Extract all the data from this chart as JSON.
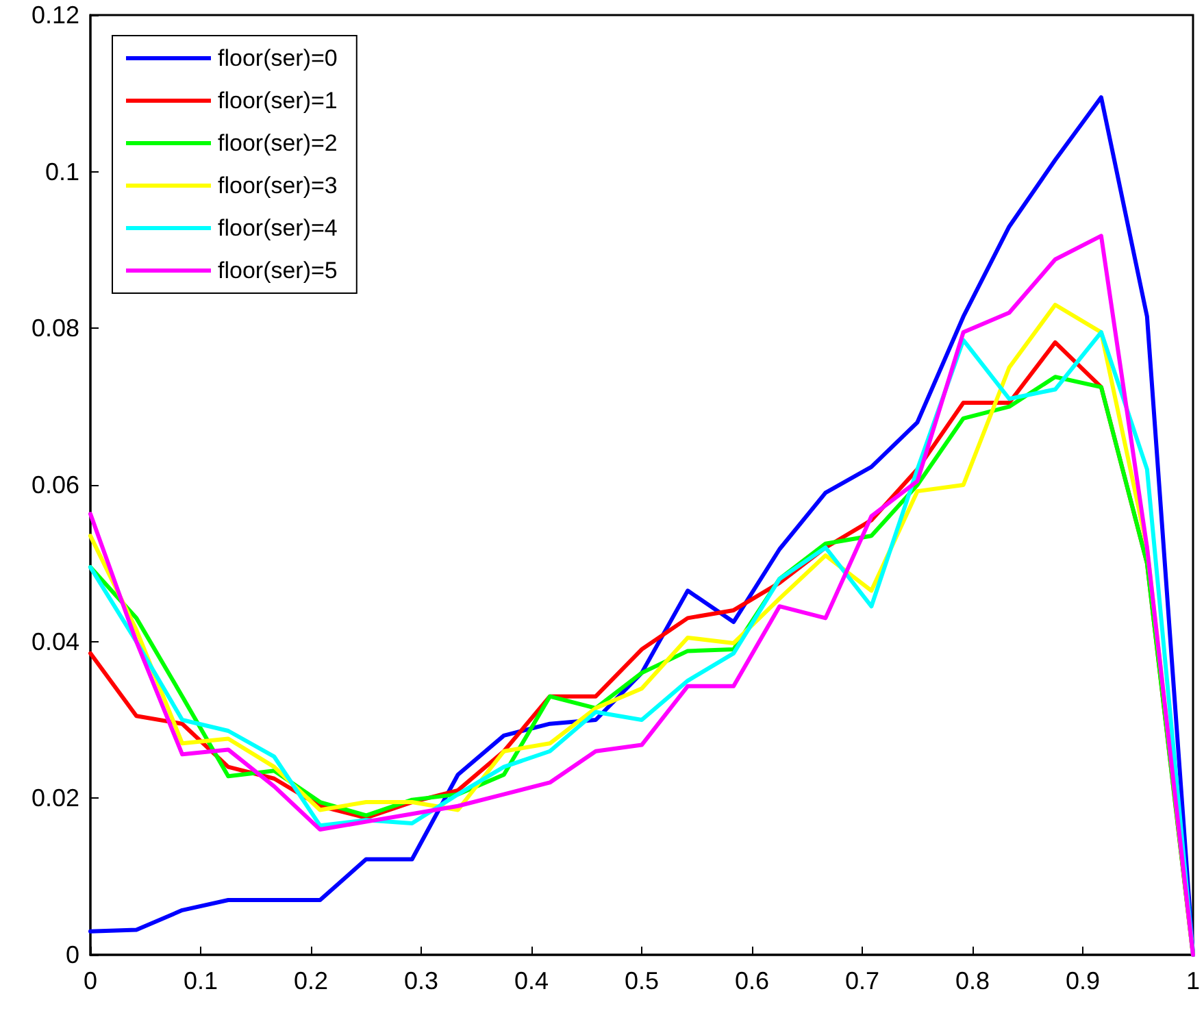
{
  "chart_data": {
    "type": "line",
    "x": [
      0,
      0.0417,
      0.0833,
      0.125,
      0.1667,
      0.2083,
      0.25,
      0.2917,
      0.3333,
      0.375,
      0.4167,
      0.4583,
      0.5,
      0.5417,
      0.5833,
      0.625,
      0.6667,
      0.7083,
      0.75,
      0.7917,
      0.8333,
      0.875,
      0.9167,
      0.9583,
      1
    ],
    "series": [
      {
        "name": "floor(ser)=0",
        "color": "#0000ff",
        "values": [
          0.003,
          0.0032,
          0.0057,
          0.007,
          0.007,
          0.007,
          0.0122,
          0.0122,
          0.023,
          0.028,
          0.0295,
          0.03,
          0.036,
          0.0465,
          0.0425,
          0.0518,
          0.059,
          0.0623,
          0.068,
          0.0815,
          0.093,
          0.1015,
          0.1095,
          0.0815,
          0
        ]
      },
      {
        "name": "floor(ser)=1",
        "color": "#ff0000",
        "values": [
          0.0385,
          0.0305,
          0.0295,
          0.024,
          0.0225,
          0.019,
          0.0175,
          0.0195,
          0.021,
          0.026,
          0.033,
          0.033,
          0.039,
          0.043,
          0.044,
          0.0475,
          0.052,
          0.0555,
          0.062,
          0.0705,
          0.0705,
          0.0782,
          0.0725,
          0.05,
          0
        ]
      },
      {
        "name": "floor(ser)=2",
        "color": "#00ff00",
        "values": [
          0.0495,
          0.043,
          0.033,
          0.0228,
          0.0235,
          0.0195,
          0.0178,
          0.0198,
          0.0205,
          0.023,
          0.033,
          0.0315,
          0.036,
          0.0388,
          0.039,
          0.048,
          0.0525,
          0.0535,
          0.06,
          0.0685,
          0.07,
          0.0738,
          0.0725,
          0.05,
          0
        ]
      },
      {
        "name": "floor(ser)=3",
        "color": "#ffff00",
        "values": [
          0.0535,
          0.0415,
          0.027,
          0.0276,
          0.024,
          0.0185,
          0.0195,
          0.0195,
          0.0185,
          0.026,
          0.027,
          0.0315,
          0.034,
          0.0405,
          0.0398,
          0.0455,
          0.051,
          0.0465,
          0.0592,
          0.06,
          0.075,
          0.083,
          0.0795,
          0.052,
          0
        ]
      },
      {
        "name": "floor(ser)=4",
        "color": "#00ffff",
        "values": [
          0.0495,
          0.04,
          0.03,
          0.0286,
          0.0253,
          0.0165,
          0.0172,
          0.0168,
          0.0205,
          0.024,
          0.026,
          0.031,
          0.03,
          0.035,
          0.0385,
          0.048,
          0.052,
          0.0445,
          0.062,
          0.0785,
          0.071,
          0.0722,
          0.0795,
          0.062,
          0
        ]
      },
      {
        "name": "floor(ser)=5",
        "color": "#ff00ff",
        "values": [
          0.0563,
          0.04,
          0.0256,
          0.0262,
          0.0215,
          0.016,
          0.017,
          0.018,
          0.019,
          0.0205,
          0.022,
          0.026,
          0.0268,
          0.0343,
          0.0343,
          0.0445,
          0.043,
          0.056,
          0.0605,
          0.0795,
          0.082,
          0.0888,
          0.0918,
          0.052,
          0
        ]
      }
    ],
    "xlim": [
      0,
      1
    ],
    "xticks": [
      0,
      0.1,
      0.2,
      0.3,
      0.4,
      0.5,
      0.6,
      0.7,
      0.8,
      0.9,
      1
    ],
    "ylim": [
      0,
      0.12
    ],
    "yticks": [
      0,
      0.02,
      0.04,
      0.06,
      0.08,
      0.1,
      0.12
    ],
    "legend": "top left",
    "marker": "none",
    "line_style": "solid",
    "grid": false
  }
}
